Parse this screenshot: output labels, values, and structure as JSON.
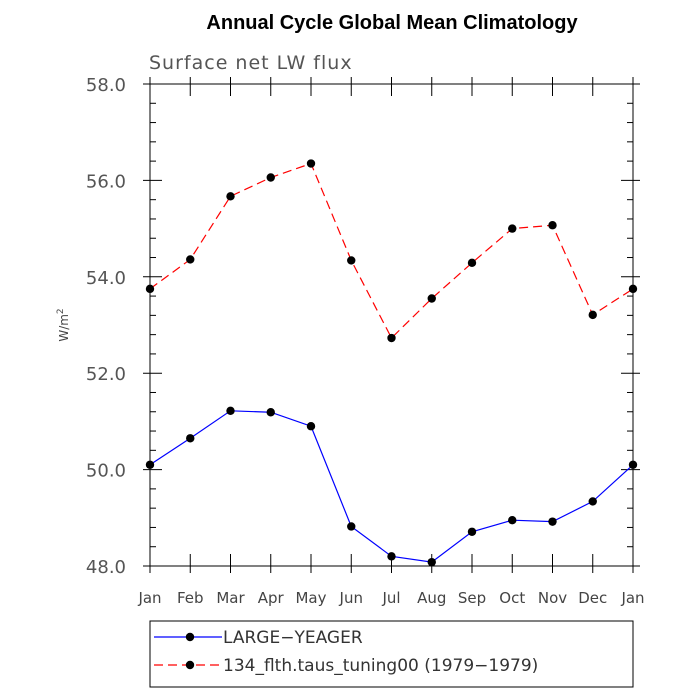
{
  "chart_data": {
    "type": "line",
    "title": "Annual Cycle Global Mean Climatology",
    "subtitle": "Surface net LW flux",
    "ylabel_text": "W/m",
    "ylabel_sup": "2",
    "categories": [
      "Jan",
      "Feb",
      "Mar",
      "Apr",
      "May",
      "Jun",
      "Jul",
      "Aug",
      "Sep",
      "Oct",
      "Nov",
      "Dec",
      "Jan"
    ],
    "ylim": [
      48.0,
      58.0
    ],
    "yticks": [
      48.0,
      50.0,
      52.0,
      54.0,
      56.0,
      58.0
    ],
    "ytick_labels": [
      "48.0",
      "50.0",
      "52.0",
      "54.0",
      "56.0",
      "58.0"
    ],
    "grid": false,
    "legend_position": "bottom",
    "series": [
      {
        "name": "LARGE−YEAGER",
        "color": "#0000ff",
        "dash": "solid",
        "values": [
          50.1,
          50.65,
          51.22,
          51.19,
          50.9,
          48.82,
          48.2,
          48.08,
          48.71,
          48.95,
          48.92,
          49.34,
          50.1
        ]
      },
      {
        "name": "134_flth.taus_tuning00 (1979−1979)",
        "color": "#ff0000",
        "dash": "dashed",
        "values": [
          53.75,
          54.36,
          55.67,
          56.06,
          56.35,
          54.34,
          52.73,
          53.55,
          54.29,
          55.0,
          55.07,
          53.21,
          53.75
        ]
      }
    ]
  }
}
